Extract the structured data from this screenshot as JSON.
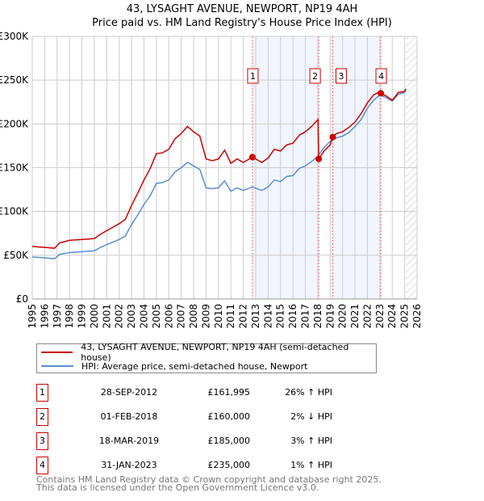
{
  "title_line1": "43, LYSAGHT AVENUE, NEWPORT, NP19 4AH",
  "title_line2": "Price paid vs. HM Land Registry's House Price Index (HPI)",
  "legend": [
    {
      "label": "43, LYSAGHT AVENUE, NEWPORT, NP19 4AH (semi-detached house)",
      "color": "#cc0000"
    },
    {
      "label": "HPI: Average price, semi-detached house, Newport",
      "color": "#5b8fd0"
    }
  ],
  "sales": [
    {
      "num": "1",
      "date": "28-SEP-2012",
      "price": "£161,995",
      "hpi": "26% ↑ HPI"
    },
    {
      "num": "2",
      "date": "01-FEB-2018",
      "price": "£160,000",
      "hpi": "2% ↓ HPI"
    },
    {
      "num": "3",
      "date": "18-MAR-2019",
      "price": "£185,000",
      "hpi": "3% ↑ HPI"
    },
    {
      "num": "4",
      "date": "31-JAN-2023",
      "price": "£235,000",
      "hpi": "1% ↑ HPI"
    }
  ],
  "footer_line1": "Contains HM Land Registry data © Crown copyright and database right 2025.",
  "footer_line2": "This data is licensed under the Open Government Licence v3.0.",
  "chart_data": {
    "type": "line",
    "xlim": [
      1995,
      2026
    ],
    "ylim": [
      0,
      300000
    ],
    "yticks": [
      0,
      50000,
      100000,
      150000,
      200000,
      250000,
      300000
    ],
    "ytick_labels": [
      "£0",
      "£50K",
      "£100K",
      "£150K",
      "£200K",
      "£250K",
      "£300K"
    ],
    "xticks": [
      "1995",
      "1996",
      "1997",
      "1998",
      "1999",
      "2000",
      "2001",
      "2002",
      "2003",
      "2004",
      "2005",
      "2006",
      "2007",
      "2008",
      "2009",
      "2010",
      "2011",
      "2012",
      "2013",
      "2014",
      "2015",
      "2016",
      "2017",
      "2018",
      "2019",
      "2020",
      "2021",
      "2022",
      "2023",
      "2024",
      "2025",
      "2026"
    ],
    "grid": true,
    "shaded_ranges": [
      [
        2012.74,
        2018.08
      ],
      [
        2019.21,
        2023.08
      ]
    ],
    "forecast_hatch_from": 2025.1,
    "series": [
      {
        "name": "43, LYSAGHT AVENUE, NEWPORT, NP19 4AH (semi-detached house)",
        "color": "#cc0000",
        "x": [
          1995,
          1996,
          1996.8,
          1997.2,
          1998,
          1999,
          2000,
          2000.5,
          2001,
          2002,
          2002.5,
          2003,
          2003.5,
          2004,
          2004.5,
          2005,
          2005.5,
          2006,
          2006.5,
          2007,
          2007.5,
          2008,
          2008.5,
          2009,
          2009.5,
          2010,
          2010.5,
          2011,
          2011.5,
          2012,
          2012.74,
          2013.5,
          2014,
          2014.5,
          2015,
          2015.5,
          2016,
          2016.5,
          2017,
          2017.5,
          2018.02,
          2018.08,
          2018.5,
          2019,
          2019.21,
          2019.5,
          2020,
          2020.5,
          2021,
          2021.5,
          2022,
          2022.5,
          2023,
          2023.08,
          2023.5,
          2024,
          2024.5,
          2025,
          2025.1
        ],
        "y": [
          60,
          59,
          58,
          64,
          67,
          68,
          69,
          74,
          78,
          86,
          91,
          107,
          121,
          136,
          149,
          166,
          167,
          171,
          183,
          189,
          197,
          191,
          186,
          160,
          158,
          160,
          170,
          155,
          160,
          156,
          162,
          156,
          161,
          171,
          169,
          176,
          178,
          187,
          191,
          197,
          205,
          160,
          169,
          176,
          185,
          189,
          191,
          196,
          202,
          212,
          224,
          233,
          237,
          235,
          232,
          227,
          236,
          237,
          240
        ]
      },
      {
        "name": "HPI: Average price, semi-detached house, Newport",
        "color": "#5b8fd0",
        "x": [
          1995,
          1996,
          1996.8,
          1997.2,
          1998,
          1999,
          2000,
          2000.5,
          2001,
          2002,
          2002.5,
          2003,
          2003.5,
          2004,
          2004.5,
          2005,
          2005.5,
          2006,
          2006.5,
          2007,
          2007.5,
          2008,
          2008.5,
          2009,
          2009.5,
          2010,
          2010.5,
          2011,
          2011.5,
          2012,
          2012.74,
          2013.5,
          2014,
          2014.5,
          2015,
          2015.5,
          2016,
          2016.5,
          2017,
          2017.5,
          2018,
          2018.5,
          2019,
          2019.5,
          2020,
          2020.5,
          2021,
          2021.5,
          2022,
          2022.5,
          2023,
          2023.5,
          2024,
          2024.5,
          2025,
          2025.1
        ],
        "y": [
          48,
          47,
          46,
          51,
          53,
          54,
          55,
          59,
          62,
          68,
          72,
          85,
          96,
          108,
          118,
          132,
          133,
          136,
          145,
          150,
          156,
          152,
          148,
          127,
          126,
          127,
          135,
          123,
          127,
          124,
          128,
          124,
          128,
          136,
          134,
          140,
          141,
          149,
          152,
          157,
          163,
          173,
          180,
          184,
          186,
          190,
          197,
          205,
          218,
          227,
          233,
          230,
          226,
          234,
          236,
          239
        ]
      }
    ],
    "y_units": "thousands GBP",
    "markers": [
      {
        "label": "1",
        "x": 2012.74,
        "y": 161995
      },
      {
        "label": "2",
        "x": 2018.08,
        "y": 160000
      },
      {
        "label": "3",
        "x": 2019.21,
        "y": 185000
      },
      {
        "label": "4",
        "x": 2023.08,
        "y": 235000
      }
    ]
  }
}
